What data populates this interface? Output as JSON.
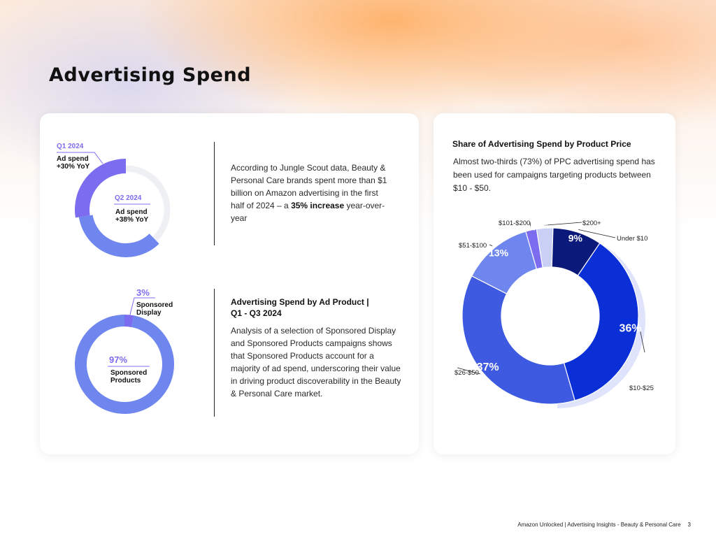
{
  "page": {
    "title": "Advertising Spend",
    "footer_text": "Amazon Unlocked | Advertising Insights - Beauty & Personal Care",
    "page_number": "3"
  },
  "left_card": {
    "yoy": {
      "q1_label": "Q1 2024",
      "q1_text_1": "Ad spend",
      "q1_text_2": "+30% YoY",
      "q2_label": "Q2 2024",
      "q2_text_1": "Ad spend",
      "q2_text_2": "+38% YoY",
      "paragraph_1": "According to Jungle Scout data, Beauty & Personal Care brands spent more than $1 billion on Amazon advertising in the first half of 2024 – a ",
      "paragraph_bold": "35% increase",
      "paragraph_2": " year-over-year"
    },
    "ad_product": {
      "display_pct": "3%",
      "display_label_1": "Sponsored",
      "display_label_2": "Display",
      "products_pct": "97%",
      "products_label_1": "Sponsored",
      "products_label_2": "Products",
      "title_line_1": "Advertising Spend by Ad Product |",
      "title_line_2": "Q1 - Q3 2024",
      "paragraph": "Analysis of a selection of Sponsored Display and Sponsored Products campaigns shows that Sponsored Products account for a majority of ad spend, underscoring their value in driving product discoverability in the Beauty & Personal Care market."
    }
  },
  "right_card": {
    "title": "Share of Advertising Spend by Product Price",
    "description": "Almost two-thirds (73%) of PPC advertising spend has been used for campaigns targeting products between $10 - $50."
  },
  "colors": {
    "purple": "#7b6cf0",
    "periwinkle": "#6f86ee",
    "navy": "#0b1a7a",
    "royal": "#0b2fd6",
    "blue": "#3e5ae0",
    "light": "#c9cff5"
  },
  "chart_data": [
    {
      "type": "pie",
      "title": "",
      "categories": [
        "Q1 2024",
        "Q2 2024"
      ],
      "values": [
        30,
        38
      ],
      "labels": [
        "Ad spend +30% YoY",
        "Ad spend +38% YoY"
      ]
    },
    {
      "type": "pie",
      "title": "Advertising Spend by Ad Product | Q1 - Q3 2024",
      "categories": [
        "Sponsored Display",
        "Sponsored Products"
      ],
      "values": [
        3,
        97
      ]
    },
    {
      "type": "pie",
      "title": "Share of Advertising Spend by Product Price",
      "categories": [
        "Under $10",
        "$10-$25",
        "$26-$50",
        "$51-$100",
        "$101-$200",
        "$200+"
      ],
      "values": [
        9,
        36,
        37,
        13,
        2,
        3
      ]
    }
  ]
}
